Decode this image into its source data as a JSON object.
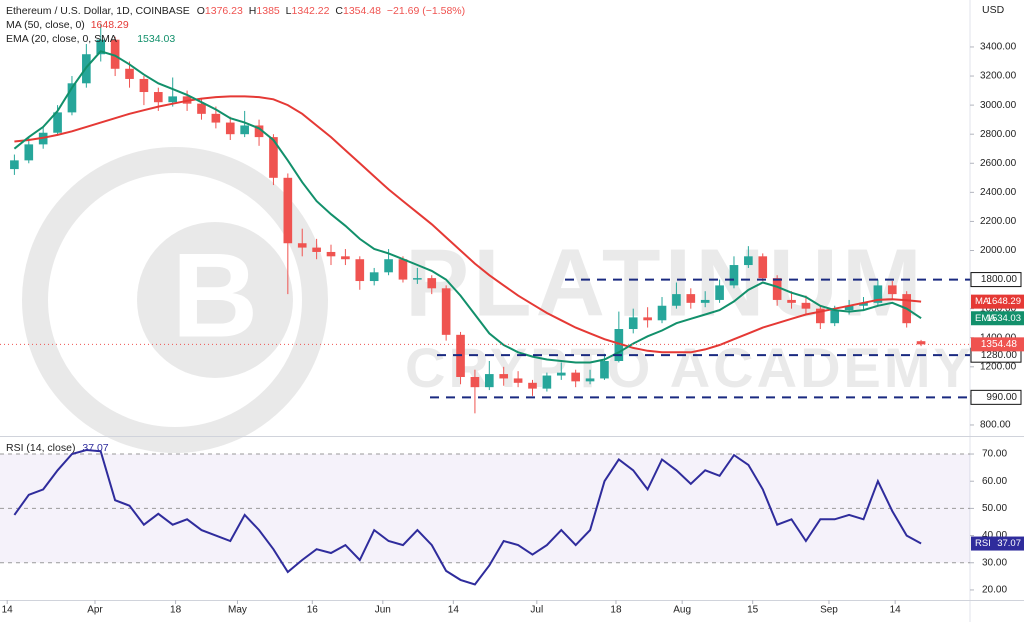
{
  "header": {
    "symbol": "Ethereum / U.S. Dollar, 1D, COINBASE",
    "ohlc_letters": [
      "O",
      "H",
      "L",
      "C"
    ],
    "change": "−21.69 (−1.58%)",
    "ma_label": "MA (50, close, 0)",
    "ema_label": "EMA (20, close, 0, SMA",
    "rsi_label": "RSI (14, close)",
    "currency": "USD"
  },
  "watermark": {
    "title": "PLATINUM",
    "subtitle": "CRYPTO ACADEMY"
  },
  "chart_data": [
    {
      "type": "candlestick",
      "xlim": [
        -1,
        66.4
      ],
      "xticks": [
        {
          "value": -0.5,
          "label": "14"
        },
        {
          "value": 5.6,
          "label": "Apr"
        },
        {
          "value": 11.2,
          "label": "18"
        },
        {
          "value": 15.5,
          "label": "May"
        },
        {
          "value": 20.7,
          "label": "16"
        },
        {
          "value": 25.6,
          "label": "Jun"
        },
        {
          "value": 30.5,
          "label": "14"
        },
        {
          "value": 36.3,
          "label": "Jul"
        },
        {
          "value": 41.8,
          "label": "18"
        },
        {
          "value": 46.4,
          "label": "Aug"
        },
        {
          "value": 51.3,
          "label": "15"
        },
        {
          "value": 56.6,
          "label": "Sep"
        },
        {
          "value": 61.2,
          "label": "14"
        }
      ],
      "ylim": [
        731,
        3723
      ],
      "yticks": [
        {
          "value": 800,
          "label": "800.00"
        },
        {
          "value": 1000,
          "label": "1000.00"
        },
        {
          "value": 1200,
          "label": "1200.00"
        },
        {
          "value": 1400,
          "label": "1400.00"
        },
        {
          "value": 1600,
          "label": "1600.00"
        },
        {
          "value": 1800,
          "label": "1800.00"
        },
        {
          "value": 2000,
          "label": "2000.00"
        },
        {
          "value": 2200,
          "label": "2200.00"
        },
        {
          "value": 2400,
          "label": "2400.00"
        },
        {
          "value": 2600,
          "label": "2600.00"
        },
        {
          "value": 2800,
          "label": "2800.00"
        },
        {
          "value": 3000,
          "label": "3000.00"
        },
        {
          "value": 3200,
          "label": "3200.00"
        },
        {
          "value": 3400,
          "label": "3400.00"
        }
      ],
      "candles": {
        "up_color": "#26a69a",
        "down_color": "#ef5350",
        "open": [
          2560,
          2620,
          2730,
          2810,
          2950,
          3150,
          3350,
          3450,
          3250,
          3180,
          3090,
          3020,
          3060,
          3010,
          2940,
          2880,
          2800,
          2860,
          2780,
          2500,
          2050,
          2020,
          1990,
          1960,
          1940,
          1790,
          1850,
          1940,
          1800,
          1810,
          1740,
          1420,
          1130,
          1060,
          1150,
          1120,
          1090,
          1050,
          1140,
          1160,
          1100,
          1120,
          1240,
          1460,
          1540,
          1520,
          1620,
          1700,
          1640,
          1660,
          1760,
          1900,
          1960,
          1810,
          1660,
          1640,
          1600,
          1500,
          1590,
          1620,
          1640,
          1760,
          1700,
          1376.23
        ],
        "high": [
          2660,
          2780,
          2850,
          3000,
          3200,
          3420,
          3560,
          3470,
          3300,
          3200,
          3120,
          3190,
          3100,
          3040,
          2990,
          2920,
          2960,
          2900,
          2800,
          2530,
          2150,
          2080,
          2040,
          2010,
          1960,
          1880,
          2010,
          1960,
          1880,
          1830,
          1760,
          1440,
          1180,
          1240,
          1200,
          1170,
          1110,
          1160,
          1230,
          1180,
          1180,
          1290,
          1580,
          1600,
          1610,
          1680,
          1780,
          1740,
          1720,
          1800,
          1960,
          2030,
          1980,
          1830,
          1720,
          1690,
          1620,
          1620,
          1660,
          1680,
          1800,
          1790,
          1720,
          1385
        ],
        "low": [
          2520,
          2600,
          2700,
          2790,
          2930,
          3120,
          3300,
          3200,
          3120,
          3000,
          2960,
          2990,
          2960,
          2900,
          2840,
          2760,
          2780,
          2720,
          2450,
          1700,
          1960,
          1940,
          1900,
          1900,
          1730,
          1760,
          1830,
          1780,
          1770,
          1700,
          1380,
          1080,
          880,
          1040,
          1070,
          1060,
          1000,
          1030,
          1110,
          1060,
          1080,
          1110,
          1230,
          1430,
          1470,
          1500,
          1600,
          1600,
          1610,
          1640,
          1740,
          1880,
          1790,
          1620,
          1600,
          1560,
          1460,
          1480,
          1560,
          1590,
          1620,
          1660,
          1470,
          1342.22
        ],
        "close": [
          2620,
          2730,
          2810,
          2950,
          3150,
          3350,
          3450,
          3250,
          3180,
          3090,
          3020,
          3060,
          3010,
          2940,
          2880,
          2800,
          2860,
          2780,
          2500,
          2050,
          2020,
          1990,
          1960,
          1940,
          1790,
          1850,
          1940,
          1800,
          1810,
          1740,
          1420,
          1130,
          1060,
          1150,
          1120,
          1090,
          1050,
          1140,
          1160,
          1100,
          1120,
          1240,
          1460,
          1540,
          1520,
          1620,
          1700,
          1640,
          1660,
          1760,
          1900,
          1960,
          1810,
          1660,
          1640,
          1600,
          1500,
          1590,
          1620,
          1640,
          1760,
          1700,
          1500,
          1354.48
        ]
      },
      "series": [
        {
          "name": "MA",
          "color": "#e53935",
          "values": [
            2750,
            2760,
            2775,
            2795,
            2820,
            2850,
            2880,
            2910,
            2940,
            2965,
            2990,
            3010,
            3030,
            3045,
            3055,
            3060,
            3060,
            3055,
            3040,
            3000,
            2940,
            2860,
            2780,
            2690,
            2600,
            2510,
            2420,
            2340,
            2260,
            2180,
            2090,
            2000,
            1910,
            1830,
            1760,
            1690,
            1630,
            1570,
            1520,
            1470,
            1430,
            1390,
            1360,
            1330,
            1310,
            1300,
            1300,
            1300,
            1320,
            1350,
            1390,
            1430,
            1470,
            1500,
            1530,
            1560,
            1580,
            1600,
            1620,
            1640,
            1660,
            1665,
            1658,
            1648.29
          ]
        },
        {
          "name": "EMA",
          "color": "#12906b",
          "values": [
            2700,
            2780,
            2850,
            2960,
            3120,
            3260,
            3370,
            3340,
            3280,
            3210,
            3150,
            3110,
            3070,
            3020,
            2970,
            2910,
            2880,
            2840,
            2760,
            2620,
            2470,
            2340,
            2250,
            2170,
            2080,
            2010,
            1980,
            1940,
            1900,
            1860,
            1800,
            1690,
            1560,
            1430,
            1350,
            1300,
            1270,
            1250,
            1240,
            1230,
            1230,
            1250,
            1300,
            1360,
            1410,
            1450,
            1500,
            1530,
            1560,
            1590,
            1650,
            1730,
            1780,
            1750,
            1710,
            1680,
            1620,
            1590,
            1580,
            1590,
            1620,
            1640,
            1600,
            1534.03
          ]
        }
      ],
      "levels": [
        {
          "value": 1800,
          "label": "1800.00"
        },
        {
          "value": 1280,
          "label": "1280.00"
        },
        {
          "value": 990,
          "label": "990.00"
        }
      ],
      "level_color": "#1a2a80"
    },
    {
      "type": "line",
      "ylim": [
        16.3,
        75.9
      ],
      "yticks": [
        {
          "value": 20,
          "label": "20.00"
        },
        {
          "value": 30,
          "label": "30.00"
        },
        {
          "value": 40,
          "label": "40.00"
        },
        {
          "value": 50,
          "label": "50.00"
        },
        {
          "value": 60,
          "label": "60.00"
        },
        {
          "value": 70,
          "label": "70.00"
        }
      ],
      "band": [
        30,
        70
      ],
      "guides": [
        30,
        50,
        70
      ],
      "series": [
        {
          "name": "RSI",
          "color": "#2f2c9c",
          "values": [
            47.6,
            55,
            57,
            64,
            70,
            71.5,
            71,
            53,
            51,
            44,
            48,
            44,
            46,
            42,
            40,
            38,
            47.6,
            42,
            35,
            26.6,
            31,
            35,
            33.6,
            36.5,
            31,
            42,
            38,
            36.5,
            42,
            36.5,
            27,
            23.7,
            22,
            29,
            38,
            36.5,
            33,
            36.5,
            42,
            36.5,
            42,
            60,
            68,
            64,
            57,
            68,
            64,
            59,
            64,
            62,
            69.6,
            66,
            57,
            44,
            46,
            38,
            46,
            46,
            47.6,
            46,
            60,
            49,
            40,
            37.07
          ]
        }
      ]
    }
  ]
}
